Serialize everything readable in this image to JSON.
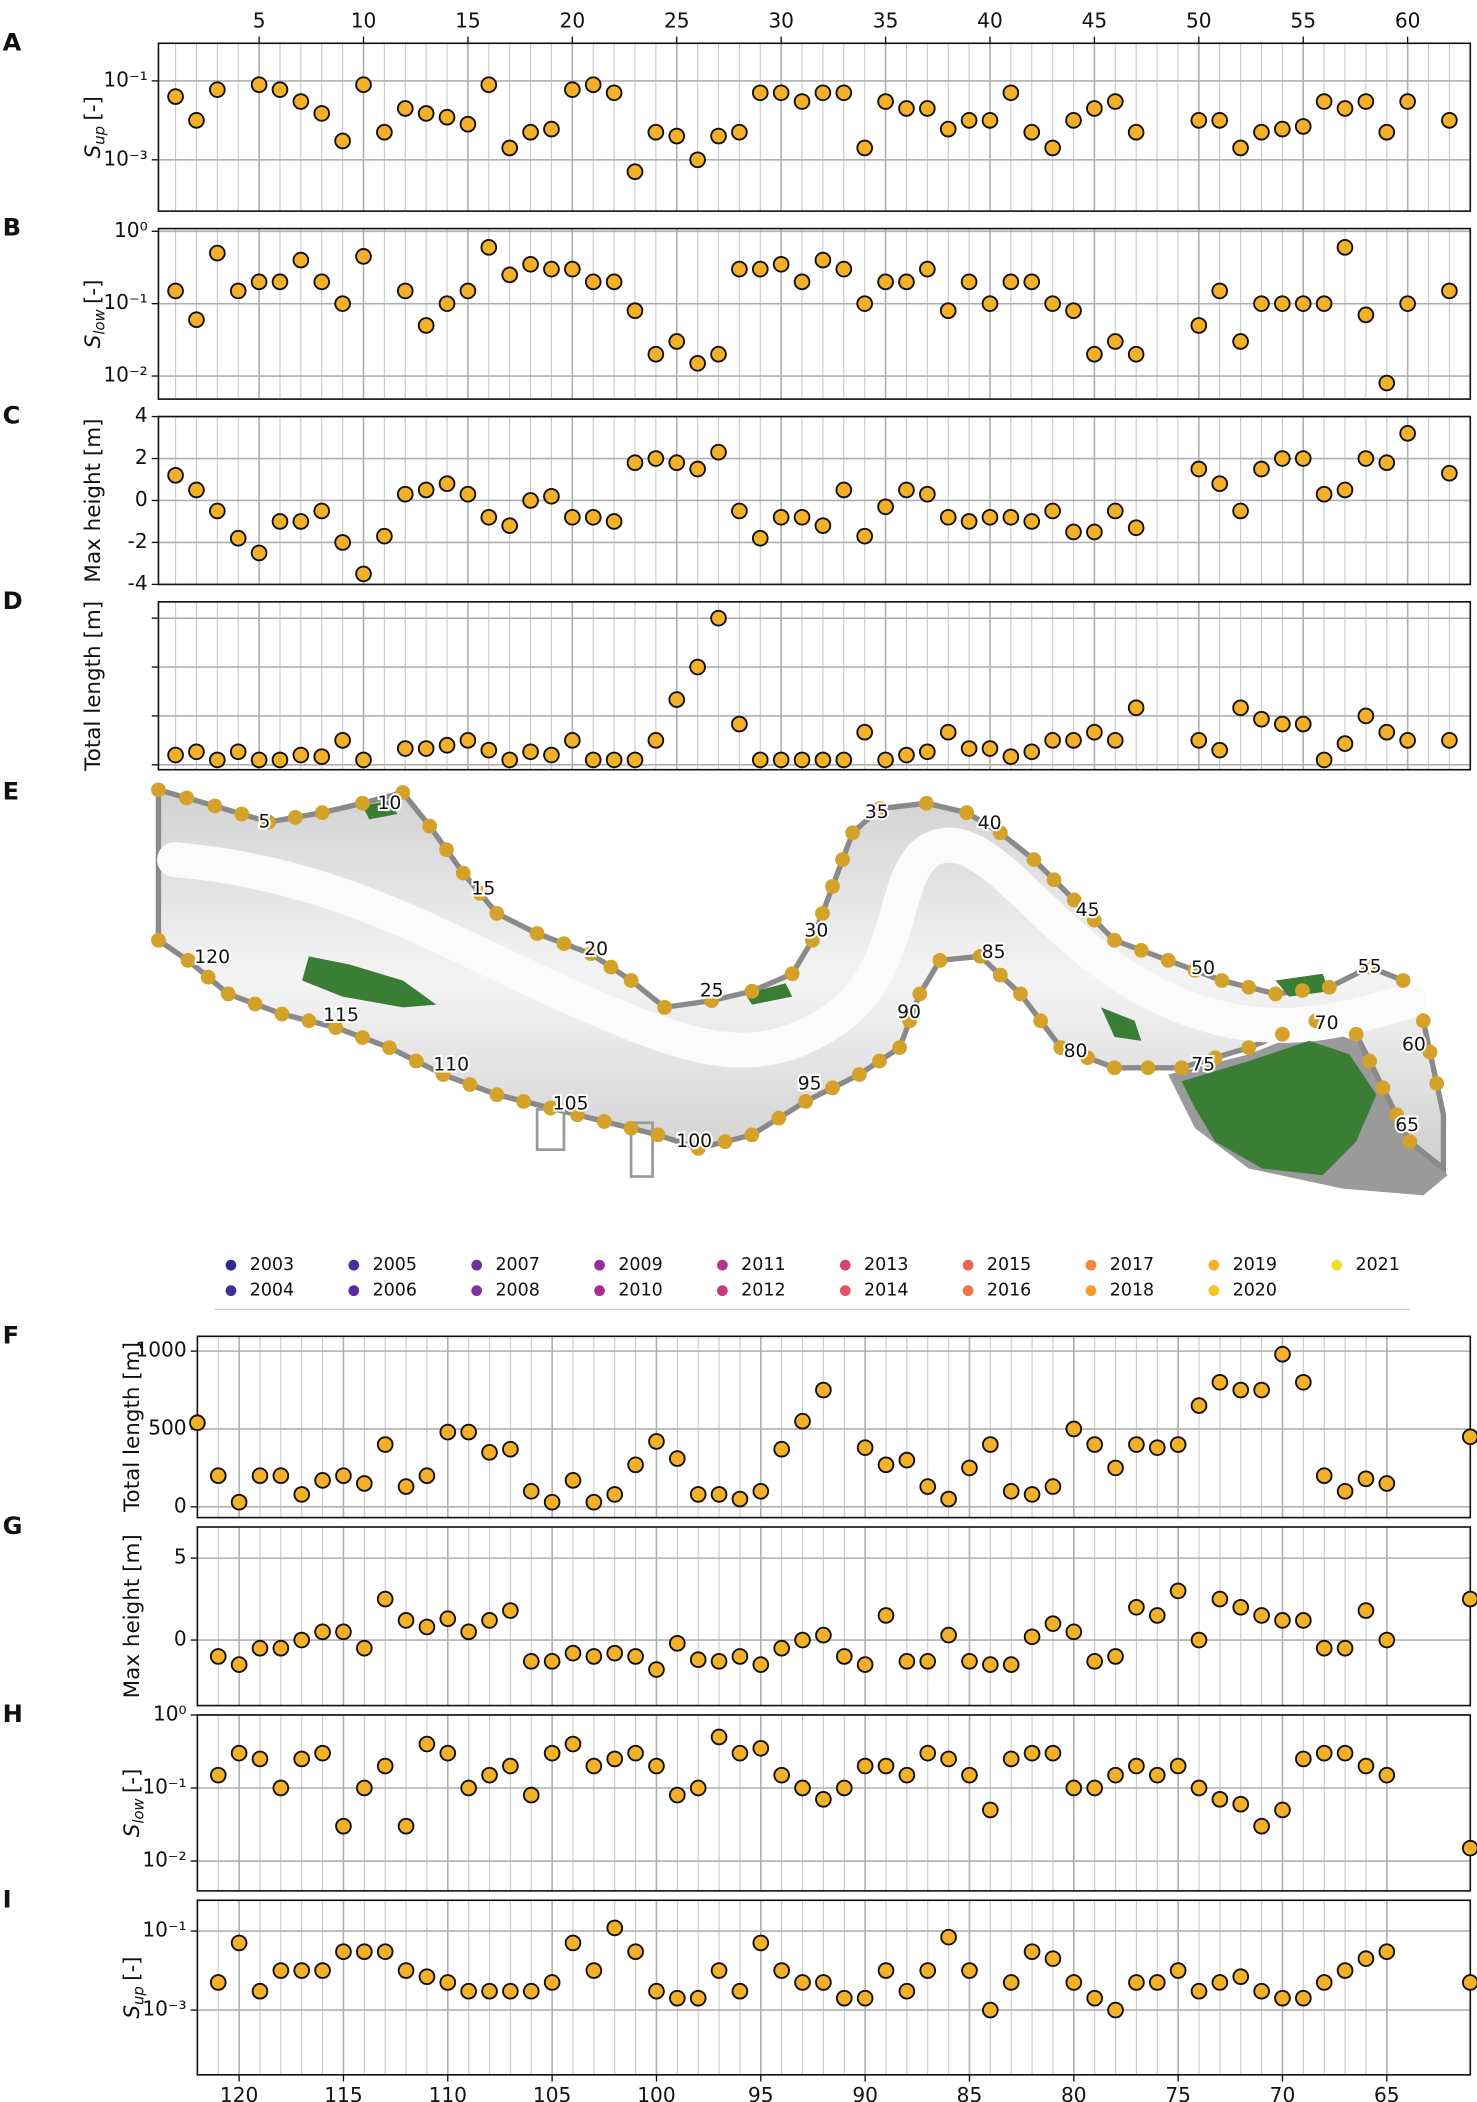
{
  "chart_data": [
    {
      "type": "scatter",
      "label": "A",
      "ylabel": "S",
      "ylabel_sub": "up",
      "ylabel_unit": "[-]",
      "yscale": "log",
      "x": [
        1,
        2,
        3,
        4,
        5,
        6,
        7,
        8,
        9,
        10,
        11,
        12,
        13,
        14,
        15,
        16,
        17,
        18,
        19,
        20,
        21,
        22,
        23,
        24,
        25,
        26,
        27,
        28,
        29,
        30,
        31,
        32,
        33,
        34,
        35,
        36,
        37,
        38,
        39,
        40,
        41,
        42,
        43,
        44,
        45,
        46,
        47,
        48,
        49,
        50,
        51,
        52,
        53,
        54,
        55,
        56,
        57,
        58,
        59,
        60,
        61,
        62
      ],
      "values": [
        0.04,
        0.01,
        0.06,
        null,
        0.08,
        0.06,
        0.03,
        0.015,
        0.003,
        0.08,
        0.005,
        0.02,
        0.015,
        0.012,
        0.008,
        0.08,
        0.002,
        0.005,
        0.006,
        0.06,
        0.08,
        0.05,
        0.0005,
        0.005,
        0.004,
        0.001,
        0.004,
        0.005,
        0.05,
        0.05,
        0.03,
        0.05,
        0.05,
        0.002,
        0.03,
        0.02,
        0.02,
        0.006,
        0.01,
        0.01,
        0.05,
        0.005,
        0.002,
        0.01,
        0.02,
        0.03,
        0.005,
        null,
        null,
        0.01,
        0.01,
        0.002,
        0.005,
        0.006,
        0.007,
        0.03,
        0.02,
        0.03,
        0.005,
        0.03,
        null,
        0.01
      ],
      "xlim": [
        0.18,
        63
      ],
      "ylim": [
        5e-05,
        0.9
      ],
      "yticks": [
        {
          "value": 0.001,
          "label": "10⁻³"
        },
        {
          "value": 0.1,
          "label": "10⁻¹"
        }
      ],
      "xticks": [
        5,
        10,
        15,
        20,
        25,
        30,
        35,
        40,
        45,
        50,
        55,
        60
      ],
      "xtick_labels": "top",
      "color": "#f5b02a",
      "grid": true
    },
    {
      "type": "scatter",
      "label": "B",
      "ylabel": "S",
      "ylabel_sub": "low",
      "ylabel_unit": "[-]",
      "yscale": "log",
      "x": [
        1,
        2,
        3,
        4,
        5,
        6,
        7,
        8,
        9,
        10,
        11,
        12,
        13,
        14,
        15,
        16,
        17,
        18,
        19,
        20,
        21,
        22,
        23,
        24,
        25,
        26,
        27,
        28,
        29,
        30,
        31,
        32,
        33,
        34,
        35,
        36,
        37,
        38,
        39,
        40,
        41,
        42,
        43,
        44,
        45,
        46,
        47,
        48,
        49,
        50,
        51,
        52,
        53,
        54,
        55,
        56,
        57,
        58,
        59,
        60,
        61,
        62
      ],
      "values": [
        0.15,
        0.06,
        0.5,
        0.15,
        0.2,
        0.2,
        0.4,
        0.2,
        0.1,
        0.45,
        null,
        0.15,
        0.05,
        0.1,
        0.15,
        0.6,
        0.25,
        0.35,
        0.3,
        0.3,
        0.2,
        0.2,
        0.08,
        0.02,
        0.03,
        0.015,
        0.02,
        0.3,
        0.3,
        0.35,
        0.2,
        0.4,
        0.3,
        0.1,
        0.2,
        0.2,
        0.3,
        0.08,
        0.2,
        0.1,
        0.2,
        0.2,
        0.1,
        0.08,
        0.02,
        0.03,
        0.02,
        null,
        null,
        0.05,
        0.15,
        0.03,
        0.1,
        0.1,
        0.1,
        0.1,
        0.6,
        0.07,
        0.008,
        0.1,
        null,
        0.15
      ],
      "xlim": [
        0.18,
        63
      ],
      "ylim": [
        0.0048,
        1.09
      ],
      "yticks": [
        {
          "value": 0.01,
          "label": "10⁻²"
        },
        {
          "value": 0.1,
          "label": "10⁻¹"
        },
        {
          "value": 1,
          "label": "10⁰"
        }
      ],
      "xticks": [
        5,
        10,
        15,
        20,
        25,
        30,
        35,
        40,
        45,
        50,
        55,
        60
      ],
      "color": "#f5b02a",
      "grid": true
    },
    {
      "type": "scatter",
      "label": "C",
      "ylabel": "Max height [m]",
      "yscale": "linear",
      "x": [
        1,
        2,
        3,
        4,
        5,
        6,
        7,
        8,
        9,
        10,
        11,
        12,
        13,
        14,
        15,
        16,
        17,
        18,
        19,
        20,
        21,
        22,
        23,
        24,
        25,
        26,
        27,
        28,
        29,
        30,
        31,
        32,
        33,
        34,
        35,
        36,
        37,
        38,
        39,
        40,
        41,
        42,
        43,
        44,
        45,
        46,
        47,
        48,
        49,
        50,
        51,
        52,
        53,
        54,
        55,
        56,
        57,
        58,
        59,
        60,
        61,
        62
      ],
      "values": [
        1.2,
        0.5,
        -0.5,
        -1.8,
        -2.5,
        -1,
        -1,
        -0.5,
        -2,
        -3.5,
        -1.7,
        0.3,
        0.5,
        0.8,
        0.3,
        -0.8,
        -1.2,
        0,
        0.2,
        -0.8,
        -0.8,
        -1,
        1.8,
        2,
        1.8,
        1.5,
        2.3,
        -0.5,
        -1.8,
        -0.8,
        -0.8,
        -1.2,
        0.5,
        -1.7,
        -0.3,
        0.5,
        0.3,
        -0.8,
        -1,
        -0.8,
        -0.8,
        -1,
        -0.5,
        -1.5,
        -1.5,
        -0.5,
        -1.3,
        null,
        null,
        1.5,
        0.8,
        -0.5,
        1.5,
        2,
        2,
        0.3,
        0.5,
        2,
        1.8,
        3.2,
        null,
        1.3
      ],
      "xlim": [
        0.18,
        63
      ],
      "ylim": [
        -4,
        4
      ],
      "yticks": [
        -4,
        -2,
        0,
        2,
        4
      ],
      "xticks": [
        5,
        10,
        15,
        20,
        25,
        30,
        35,
        40,
        45,
        50,
        55,
        60
      ],
      "color": "#f5b02a",
      "grid": true
    },
    {
      "type": "scatter",
      "label": "D",
      "ylabel": "Total length [m]",
      "yscale": "linear",
      "x": [
        1,
        2,
        3,
        4,
        5,
        6,
        7,
        8,
        9,
        10,
        11,
        12,
        13,
        14,
        15,
        16,
        17,
        18,
        19,
        20,
        21,
        22,
        23,
        24,
        25,
        26,
        27,
        28,
        29,
        30,
        31,
        32,
        33,
        34,
        35,
        36,
        37,
        38,
        39,
        40,
        41,
        42,
        43,
        44,
        45,
        46,
        47,
        48,
        49,
        50,
        51,
        52,
        53,
        54,
        55,
        56,
        57,
        58,
        59,
        60,
        61,
        62
      ],
      "values": [
        60,
        80,
        30,
        80,
        30,
        30,
        60,
        50,
        150,
        30,
        null,
        100,
        100,
        120,
        150,
        90,
        30,
        80,
        60,
        150,
        30,
        30,
        30,
        150,
        400,
        600,
        900,
        250,
        30,
        30,
        30,
        30,
        30,
        200,
        30,
        60,
        80,
        200,
        100,
        100,
        50,
        80,
        150,
        150,
        200,
        150,
        350,
        null,
        null,
        150,
        90,
        350,
        280,
        250,
        250,
        30,
        130,
        300,
        200,
        150,
        null,
        150
      ],
      "xlim": [
        0.18,
        63
      ],
      "ylim": [
        -30,
        1000
      ],
      "yticks": [
        0,
        300,
        600,
        900
      ],
      "ytick_labels": false,
      "xticks": [
        5,
        10,
        15,
        20,
        25,
        30,
        35,
        40,
        45,
        50,
        55,
        60
      ],
      "color": "#f5b02a",
      "grid": true
    },
    {
      "type": "scatter",
      "label": "F",
      "ylabel": "Total length [m]",
      "yscale": "linear",
      "x": [
        122,
        121,
        120,
        119,
        118,
        117,
        116,
        115,
        114,
        113,
        112,
        111,
        110,
        109,
        108,
        107,
        106,
        105,
        104,
        103,
        102,
        101,
        100,
        99,
        98,
        97,
        96,
        95,
        94,
        93,
        92,
        91,
        90,
        89,
        88,
        87,
        86,
        85,
        84,
        83,
        82,
        81,
        80,
        79,
        78,
        77,
        76,
        75,
        74,
        73,
        72,
        71,
        70,
        69,
        68,
        67,
        66,
        65,
        61
      ],
      "values": [
        540,
        200,
        30,
        200,
        200,
        80,
        170,
        200,
        150,
        400,
        130,
        200,
        480,
        480,
        350,
        370,
        100,
        30,
        170,
        30,
        80,
        270,
        420,
        310,
        80,
        80,
        50,
        100,
        370,
        550,
        750,
        null,
        380,
        270,
        300,
        130,
        50,
        250,
        400,
        100,
        80,
        130,
        500,
        400,
        250,
        400,
        380,
        400,
        650,
        800,
        750,
        750,
        980,
        800,
        200,
        100,
        180,
        150,
        450
      ],
      "xlim": [
        122,
        61
      ],
      "ylim": [
        -69,
        1095
      ],
      "yticks": [
        0,
        500,
        1000
      ],
      "xticks": [
        120,
        115,
        110,
        105,
        100,
        95,
        90,
        85,
        80,
        75,
        70,
        65
      ],
      "color": "#f5b02a",
      "grid": true
    },
    {
      "type": "scatter",
      "label": "G",
      "ylabel": "Max height [m]",
      "yscale": "linear",
      "x": [
        122,
        121,
        120,
        119,
        118,
        117,
        116,
        115,
        114,
        113,
        112,
        111,
        110,
        109,
        108,
        107,
        106,
        105,
        104,
        103,
        102,
        101,
        100,
        99,
        98,
        97,
        96,
        95,
        94,
        93,
        92,
        91,
        90,
        89,
        88,
        87,
        86,
        85,
        84,
        83,
        82,
        81,
        80,
        79,
        78,
        77,
        76,
        75,
        74,
        73,
        72,
        71,
        70,
        69,
        68,
        67,
        66,
        65,
        61
      ],
      "values": [
        null,
        -1,
        -1.5,
        -0.5,
        -0.5,
        0,
        0.5,
        0.5,
        -0.5,
        2.5,
        1.2,
        0.8,
        1.3,
        0.5,
        1.2,
        1.8,
        -1.3,
        -1.3,
        -0.8,
        -1,
        -0.8,
        -1,
        -1.8,
        -0.2,
        -1.2,
        -1.3,
        -1,
        -1.5,
        -0.5,
        0,
        0.3,
        -1,
        -1.5,
        1.5,
        -1.3,
        -1.3,
        0.3,
        -1.3,
        -1.5,
        -1.5,
        0.2,
        1,
        0.5,
        -1.3,
        -1,
        2,
        1.5,
        3,
        0,
        2.5,
        2,
        1.5,
        1.2,
        1.2,
        -0.5,
        -0.5,
        1.8,
        0,
        2.5
      ],
      "xlim": [
        122,
        61
      ],
      "ylim": [
        -4,
        6.9
      ],
      "yticks": [
        0,
        5
      ],
      "xticks": [
        120,
        115,
        110,
        105,
        100,
        95,
        90,
        85,
        80,
        75,
        70,
        65
      ],
      "color": "#f5b02a",
      "grid": true
    },
    {
      "type": "scatter",
      "label": "H",
      "ylabel": "S",
      "ylabel_sub": "low",
      "ylabel_unit": "[-]",
      "yscale": "log",
      "x": [
        122,
        121,
        120,
        119,
        118,
        117,
        116,
        115,
        114,
        113,
        112,
        111,
        110,
        109,
        108,
        107,
        106,
        105,
        104,
        103,
        102,
        101,
        100,
        99,
        98,
        97,
        96,
        95,
        94,
        93,
        92,
        91,
        90,
        89,
        88,
        87,
        86,
        85,
        84,
        83,
        82,
        81,
        80,
        79,
        78,
        77,
        76,
        75,
        74,
        73,
        72,
        71,
        70,
        69,
        68,
        67,
        66,
        65,
        61
      ],
      "values": [
        null,
        0.15,
        0.3,
        0.25,
        0.1,
        0.25,
        0.3,
        0.03,
        0.1,
        0.2,
        0.03,
        0.4,
        0.3,
        0.1,
        0.15,
        0.2,
        0.08,
        0.3,
        0.4,
        0.2,
        0.25,
        0.3,
        0.2,
        0.08,
        0.1,
        0.5,
        0.3,
        0.35,
        0.15,
        0.1,
        0.07,
        0.1,
        0.2,
        0.2,
        0.15,
        0.3,
        0.25,
        0.15,
        0.05,
        0.25,
        0.3,
        0.3,
        0.1,
        0.1,
        0.15,
        0.2,
        0.15,
        0.2,
        0.1,
        0.07,
        0.06,
        0.03,
        0.05,
        0.25,
        0.3,
        0.3,
        0.2,
        0.15,
        0.015
      ],
      "xlim": [
        122,
        61
      ],
      "ylim": [
        0.0039,
        1
      ],
      "yticks": [
        {
          "value": 0.01,
          "label": "10⁻²"
        },
        {
          "value": 0.1,
          "label": "10⁻¹"
        },
        {
          "value": 1,
          "label": "10⁰"
        }
      ],
      "xticks": [
        120,
        115,
        110,
        105,
        100,
        95,
        90,
        85,
        80,
        75,
        70,
        65
      ],
      "color": "#f5b02a",
      "grid": true
    },
    {
      "type": "scatter",
      "label": "I",
      "ylabel": "S",
      "ylabel_sub": "up",
      "ylabel_unit": "[-]",
      "yscale": "log",
      "x": [
        122,
        121,
        120,
        119,
        118,
        117,
        116,
        115,
        114,
        113,
        112,
        111,
        110,
        109,
        108,
        107,
        106,
        105,
        104,
        103,
        102,
        101,
        100,
        99,
        98,
        97,
        96,
        95,
        94,
        93,
        92,
        91,
        90,
        89,
        88,
        87,
        86,
        85,
        84,
        83,
        82,
        81,
        80,
        79,
        78,
        77,
        76,
        75,
        74,
        73,
        72,
        71,
        70,
        69,
        68,
        67,
        66,
        65,
        61
      ],
      "values": [
        null,
        0.005,
        0.05,
        0.003,
        0.01,
        0.01,
        0.01,
        0.03,
        0.03,
        0.03,
        0.01,
        0.007,
        0.005,
        0.003,
        0.003,
        0.003,
        0.003,
        0.005,
        0.05,
        0.01,
        0.12,
        0.03,
        0.003,
        0.002,
        0.002,
        0.01,
        0.003,
        0.05,
        0.01,
        0.005,
        0.005,
        0.002,
        0.002,
        0.01,
        0.003,
        0.01,
        0.07,
        0.01,
        0.001,
        0.005,
        0.03,
        0.02,
        0.005,
        0.002,
        0.001,
        0.005,
        0.005,
        0.01,
        0.003,
        0.005,
        0.007,
        0.003,
        0.002,
        0.002,
        0.005,
        0.01,
        0.02,
        0.03,
        0.005
      ],
      "xlim": [
        122,
        61
      ],
      "ylim": [
        2.3e-05,
        0.6
      ],
      "yticks": [
        {
          "value": 0.001,
          "label": "10⁻³"
        },
        {
          "value": 0.1,
          "label": "10⁻¹"
        }
      ],
      "xticks": [
        120,
        115,
        110,
        105,
        100,
        95,
        90,
        85,
        80,
        75,
        70,
        65
      ],
      "xtick_labels": "bottom",
      "color": "#f5b02a",
      "grid": true
    }
  ],
  "map": {
    "label": "E",
    "labels": [
      5,
      10,
      15,
      20,
      25,
      30,
      35,
      40,
      45,
      50,
      55,
      60,
      65,
      70,
      75,
      80,
      85,
      90,
      95,
      100,
      105,
      110,
      115,
      120
    ],
    "dot_color": "#d4a22a",
    "marsh_color": "#3a7d35"
  },
  "legend": {
    "years": [
      "2003",
      "2004",
      "2005",
      "2006",
      "2007",
      "2008",
      "2009",
      "2010",
      "2011",
      "2012",
      "2013",
      "2014",
      "2015",
      "2016",
      "2017",
      "2018",
      "2019",
      "2020",
      "2021"
    ],
    "colors": [
      "#2a2d8e",
      "#3b2f96",
      "#4a2c9c",
      "#5c2a9e",
      "#7030a0",
      "#82319f",
      "#942f9c",
      "#a62e95",
      "#b8328b",
      "#c83a7e",
      "#d64670",
      "#e15462",
      "#ea6455",
      "#f07548",
      "#f4873c",
      "#f69a31",
      "#f5b02a",
      "#f2c626",
      "#ecde26"
    ]
  }
}
